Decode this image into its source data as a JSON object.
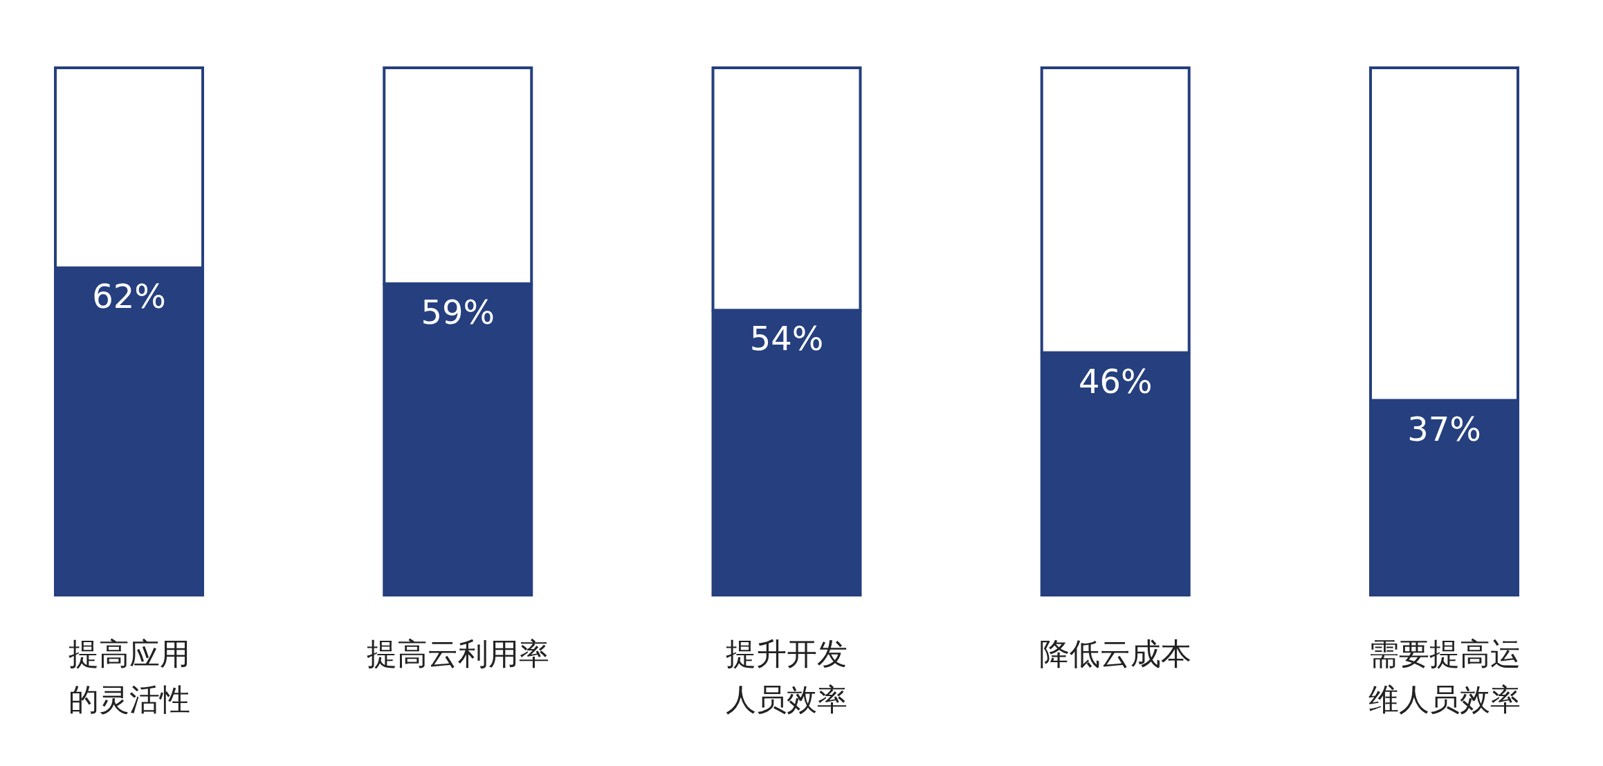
{
  "chart_data": {
    "type": "bar",
    "categories": [
      "提高应用的灵活性",
      "提高云利用率",
      "提升开发人员效率",
      "降低云成本",
      "需要提高运维人员效率"
    ],
    "stacked": true,
    "series": [
      {
        "color": "#253f7f",
        "values": [
          62,
          59,
          54,
          46,
          37
        ],
        "value_labels": [
          "62%",
          "59%",
          "54%",
          "46%",
          "37%"
        ]
      },
      {
        "color": "#ffffff",
        "values": [
          38,
          41,
          46,
          54,
          63
        ]
      }
    ],
    "tick_labels": "x",
    "grid": false
  }
}
